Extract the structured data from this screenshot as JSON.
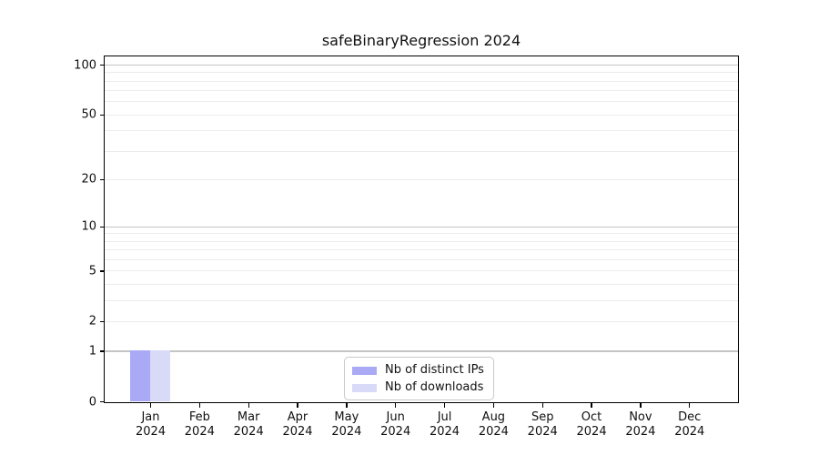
{
  "chart_data": {
    "type": "bar",
    "title": "safeBinaryRegression 2024",
    "categories": [
      "Jan 2024",
      "Feb 2024",
      "Mar 2024",
      "Apr 2024",
      "May 2024",
      "Jun 2024",
      "Jul 2024",
      "Aug 2024",
      "Sep 2024",
      "Oct 2024",
      "Nov 2024",
      "Dec 2024"
    ],
    "x_tick_line1": [
      "Jan",
      "Feb",
      "Mar",
      "Apr",
      "May",
      "Jun",
      "Jul",
      "Aug",
      "Sep",
      "Oct",
      "Nov",
      "Dec"
    ],
    "x_tick_line2": "2024",
    "series": [
      {
        "name": "Nb of distinct IPs",
        "color": "#a9a9f5",
        "values": [
          1,
          0,
          0,
          0,
          0,
          0,
          0,
          0,
          0,
          0,
          0,
          0
        ]
      },
      {
        "name": "Nb of downloads",
        "color": "#d9d9f8",
        "values": [
          1,
          0,
          0,
          0,
          0,
          0,
          0,
          0,
          0,
          0,
          0,
          0
        ]
      }
    ],
    "yscale": "log1p",
    "ylim": [
      0,
      112
    ],
    "yticks": [
      0,
      1,
      2,
      5,
      10,
      20,
      50,
      100
    ],
    "grid": {
      "major_lines": [
        1,
        10,
        100
      ],
      "minor_lines": [
        2,
        3,
        4,
        5,
        6,
        7,
        8,
        9,
        20,
        30,
        40,
        50,
        60,
        70,
        80,
        90
      ],
      "major_color": "#c4c4c4",
      "minor_color": "#ececec"
    },
    "legend_position": "lower center",
    "axis_color": "#000000",
    "background": "#ffffff"
  }
}
